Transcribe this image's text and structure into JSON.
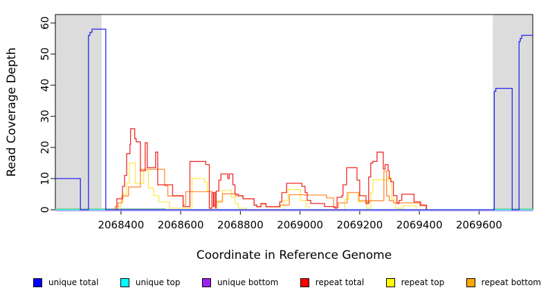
{
  "figure": {
    "background": "#FFFFFF"
  },
  "chart_data": {
    "type": "line",
    "subtype": "step-coverage-plot",
    "title": "",
    "xlabel": "Coordinate in Reference Genome",
    "ylabel": "Read Coverage Depth",
    "x_range": [
      2068180,
      2069780
    ],
    "y_range": [
      0,
      62.7
    ],
    "x_ticks": [
      2068400,
      2068600,
      2068800,
      2069000,
      2069200,
      2069400,
      2069600
    ],
    "y_ticks": [
      0,
      10,
      20,
      30,
      40,
      50,
      60
    ],
    "grid": "off",
    "legend_position": "bottom",
    "plot_bg": "#FFFFFF",
    "band_color": "#DCDCDC",
    "axis_color": "#000000",
    "repeat_region_bands": [
      [
        2068180,
        2068335
      ],
      [
        2069646,
        2069780
      ]
    ],
    "extra_zero_lines": [
      {
        "color": "#96CD96",
        "spans": [
          [
            2068180,
            2068550
          ],
          [
            2069646,
            2069780
          ]
        ]
      }
    ],
    "series": [
      {
        "name": "unique top",
        "color": "#00E5E5",
        "points": [
          [
            2068180,
            0
          ],
          [
            2069780,
            0
          ]
        ]
      },
      {
        "name": "unique bottom",
        "color": "#B499E8",
        "points": [
          [
            2068180,
            0
          ],
          [
            2069780,
            0
          ]
        ]
      },
      {
        "name": "repeat top",
        "color": "#FFE94D",
        "points": [
          [
            2068393,
            0
          ],
          [
            2068396,
            1
          ],
          [
            2068400,
            2.5
          ],
          [
            2068407,
            5
          ],
          [
            2068419,
            8.5
          ],
          [
            2068428,
            15
          ],
          [
            2068448,
            8.5
          ],
          [
            2068476,
            12.5
          ],
          [
            2068492,
            7
          ],
          [
            2068509,
            4.5
          ],
          [
            2068527,
            2.5
          ],
          [
            2068562,
            0.5
          ],
          [
            2068638,
            10
          ],
          [
            2068680,
            8.8
          ],
          [
            2068689,
            6
          ],
          [
            2068696,
            0
          ],
          [
            2068724,
            3
          ],
          [
            2068740,
            6.2
          ],
          [
            2068770,
            4
          ],
          [
            2068782,
            2
          ],
          [
            2068793,
            0.5
          ],
          [
            2068820,
            0
          ],
          [
            2068946,
            3
          ],
          [
            2068960,
            6.5
          ],
          [
            2069001,
            3
          ],
          [
            2069020,
            1
          ],
          [
            2069031,
            0
          ],
          [
            2069149,
            3.3
          ],
          [
            2069163,
            5.5
          ],
          [
            2069195,
            2.5
          ],
          [
            2069223,
            0.5
          ],
          [
            2069237,
            5.5
          ],
          [
            2069244,
            9.6
          ],
          [
            2069297,
            10.4
          ],
          [
            2069306,
            7.5
          ],
          [
            2069308,
            3.3
          ],
          [
            2069320,
            0.5
          ],
          [
            2069346,
            1.3
          ],
          [
            2069389,
            0
          ]
        ]
      },
      {
        "name": "repeat bottom",
        "color": "#FF8C33",
        "points": [
          [
            2068377,
            0
          ],
          [
            2068380,
            1
          ],
          [
            2068391,
            2.2
          ],
          [
            2068403,
            4.4
          ],
          [
            2068425,
            7.3
          ],
          [
            2068465,
            13
          ],
          [
            2068546,
            7.7
          ],
          [
            2068557,
            4.4
          ],
          [
            2068608,
            1.5
          ],
          [
            2068617,
            5.8
          ],
          [
            2068705,
            1.5
          ],
          [
            2068719,
            2.5
          ],
          [
            2068740,
            5.1
          ],
          [
            2068784,
            4.4
          ],
          [
            2068809,
            3.5
          ],
          [
            2068846,
            1.4
          ],
          [
            2068855,
            0.9
          ],
          [
            2068869,
            1.8
          ],
          [
            2068886,
            0.9
          ],
          [
            2068934,
            1.5
          ],
          [
            2068964,
            4.8
          ],
          [
            2069015,
            4.7
          ],
          [
            2069089,
            3.8
          ],
          [
            2069112,
            0.7
          ],
          [
            2069128,
            2.2
          ],
          [
            2069158,
            5.5
          ],
          [
            2069198,
            2.9
          ],
          [
            2069225,
            2.2
          ],
          [
            2069232,
            2.9
          ],
          [
            2069281,
            12.4
          ],
          [
            2069290,
            4.4
          ],
          [
            2069299,
            2.9
          ],
          [
            2069313,
            2.2
          ],
          [
            2069332,
            2.2
          ],
          [
            2069401,
            1.3
          ],
          [
            2069422,
            0
          ]
        ]
      },
      {
        "name": "repeat total",
        "color": "#F02828",
        "points": [
          [
            2068384,
            0
          ],
          [
            2068386,
            3.5
          ],
          [
            2068405,
            7.5
          ],
          [
            2068412,
            11
          ],
          [
            2068419,
            18
          ],
          [
            2068430,
            21
          ],
          [
            2068432,
            26
          ],
          [
            2068446,
            22.8
          ],
          [
            2068451,
            21.8
          ],
          [
            2068465,
            12.5
          ],
          [
            2068481,
            21.5
          ],
          [
            2068488,
            13.5
          ],
          [
            2068516,
            18.5
          ],
          [
            2068523,
            8
          ],
          [
            2068573,
            4.5
          ],
          [
            2068608,
            1
          ],
          [
            2068631,
            15.5
          ],
          [
            2068684,
            14.5
          ],
          [
            2068696,
            0.5
          ],
          [
            2068705,
            5.5
          ],
          [
            2068710,
            1
          ],
          [
            2068712,
            5.5
          ],
          [
            2068717,
            0.5
          ],
          [
            2068719,
            6
          ],
          [
            2068728,
            9.5
          ],
          [
            2068735,
            11.5
          ],
          [
            2068758,
            10
          ],
          [
            2068763,
            11.5
          ],
          [
            2068775,
            8
          ],
          [
            2068782,
            5
          ],
          [
            2068793,
            4.5
          ],
          [
            2068809,
            3.5
          ],
          [
            2068846,
            1.5
          ],
          [
            2068855,
            1
          ],
          [
            2068869,
            2
          ],
          [
            2068886,
            1
          ],
          [
            2068932,
            2.5
          ],
          [
            2068939,
            5.5
          ],
          [
            2068955,
            8.5
          ],
          [
            2069006,
            7.5
          ],
          [
            2069017,
            5.5
          ],
          [
            2069024,
            3
          ],
          [
            2069036,
            2
          ],
          [
            2069082,
            1
          ],
          [
            2069117,
            0.5
          ],
          [
            2069124,
            4
          ],
          [
            2069140,
            4.5
          ],
          [
            2069144,
            8
          ],
          [
            2069156,
            13.5
          ],
          [
            2069191,
            9.5
          ],
          [
            2069200,
            4.5
          ],
          [
            2069221,
            2
          ],
          [
            2069230,
            10.5
          ],
          [
            2069237,
            15
          ],
          [
            2069244,
            15.5
          ],
          [
            2069258,
            18.5
          ],
          [
            2069279,
            13
          ],
          [
            2069285,
            14.5
          ],
          [
            2069295,
            12.5
          ],
          [
            2069299,
            10
          ],
          [
            2069304,
            9
          ],
          [
            2069313,
            4.5
          ],
          [
            2069325,
            2
          ],
          [
            2069332,
            3
          ],
          [
            2069341,
            5
          ],
          [
            2069382,
            2.5
          ],
          [
            2069404,
            1.5
          ],
          [
            2069424,
            0
          ]
        ]
      },
      {
        "name": "unique total",
        "color": "#2222EE",
        "points": [
          [
            2068180,
            10
          ],
          [
            2068264,
            0
          ],
          [
            2068291,
            56
          ],
          [
            2068296,
            57
          ],
          [
            2068303,
            58
          ],
          [
            2068349,
            0
          ],
          [
            2069651,
            38
          ],
          [
            2069656,
            39
          ],
          [
            2069711,
            0
          ],
          [
            2069734,
            54
          ],
          [
            2069738,
            55
          ],
          [
            2069743,
            56
          ],
          [
            2069780,
            56
          ]
        ]
      }
    ],
    "legend": [
      {
        "label": "unique total",
        "color": "#0000FF"
      },
      {
        "label": "unique top",
        "color": "#00FFFF"
      },
      {
        "label": "unique bottom",
        "color": "#A020F0"
      },
      {
        "label": "repeat total",
        "color": "#FF0000"
      },
      {
        "label": "repeat top",
        "color": "#FFFF00"
      },
      {
        "label": "repeat bottom",
        "color": "#FFA500"
      }
    ]
  }
}
